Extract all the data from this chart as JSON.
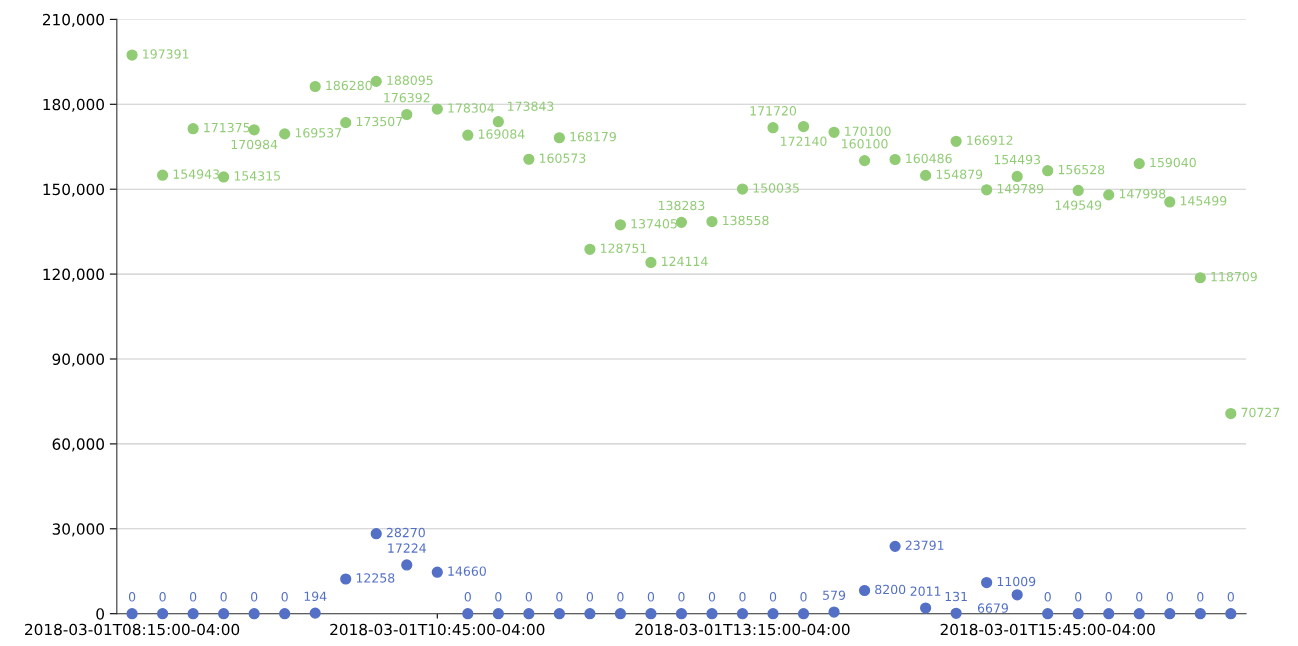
{
  "chart_data": {
    "type": "scatter",
    "categories": [
      "2018-03-01T08:15:00-04:00",
      null,
      null,
      null,
      null,
      null,
      null,
      null,
      null,
      null,
      "2018-03-01T10:45:00-04:00",
      null,
      null,
      null,
      null,
      null,
      null,
      null,
      null,
      null,
      "2018-03-01T13:15:00-04:00",
      null,
      null,
      null,
      null,
      null,
      null,
      null,
      null,
      null,
      "2018-03-01T15:45:00-04:00",
      null,
      null,
      null,
      null,
      null,
      null
    ],
    "series": [
      {
        "color": "#91cc75",
        "values": [
          197391,
          154943,
          171375,
          154315,
          170984,
          169537,
          186280,
          173507,
          188095,
          176392,
          178304,
          169084,
          173843,
          160573,
          168179,
          128751,
          137405,
          124114,
          138283,
          138558,
          150035,
          171720,
          172140,
          170100,
          160100,
          160486,
          154879,
          166912,
          149789,
          154493,
          156528,
          149549,
          147998,
          159040,
          145499,
          118709,
          70727
        ]
      },
      {
        "color": "#5470c6",
        "values": [
          0,
          0,
          0,
          0,
          0,
          0,
          194,
          12258,
          28270,
          17224,
          14660,
          0,
          0,
          0,
          0,
          0,
          0,
          0,
          0,
          0,
          0,
          0,
          0,
          579,
          8200,
          23791,
          2011,
          131,
          11009,
          6679,
          0,
          0,
          0,
          0,
          0,
          0,
          0
        ]
      }
    ],
    "ylim": [
      0,
      210000
    ],
    "yticks": [
      {
        "value": 0,
        "label": "0"
      },
      {
        "value": 30000,
        "label": "30,000"
      },
      {
        "value": 60000,
        "label": "60,000"
      },
      {
        "value": 90000,
        "label": "90,000"
      },
      {
        "value": 120000,
        "label": "120,000"
      },
      {
        "value": 150000,
        "label": "150,000"
      },
      {
        "value": 180000,
        "label": "180,000"
      },
      {
        "value": 210000,
        "label": "210,000"
      }
    ],
    "grid": "y",
    "marker": "circle",
    "data_labels": true
  }
}
